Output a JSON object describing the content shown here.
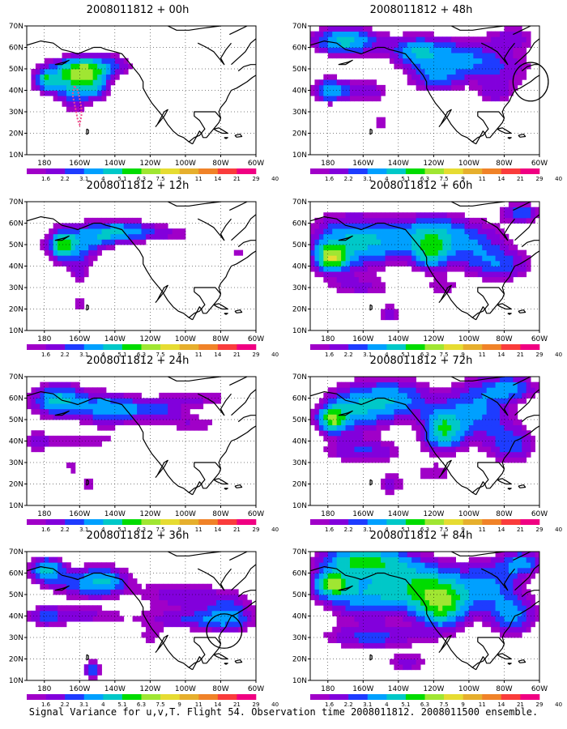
{
  "colors": {
    "levels": [
      "#a000c8",
      "#8200dc",
      "#1e3cff",
      "#00a0ff",
      "#00c8c8",
      "#00dc00",
      "#a0e632",
      "#e6dc32",
      "#e6af2d",
      "#f08228",
      "#fa3c3c",
      "#f00082"
    ],
    "coast": "#000000",
    "grid": "#000000",
    "circle": "#000000",
    "track": "#f0508c"
  },
  "axes": {
    "x_ticks": [
      "180",
      "160W",
      "140W",
      "120W",
      "100W",
      "80W",
      "60W"
    ],
    "x_values": [
      180,
      -160,
      -140,
      -120,
      -100,
      -80,
      -60
    ],
    "y_ticks": [
      "10N",
      "20N",
      "30N",
      "40N",
      "50N",
      "60N",
      "70N"
    ],
    "y_values": [
      10,
      20,
      30,
      40,
      50,
      60,
      70
    ]
  },
  "colorbar": {
    "labels": [
      "1.6",
      "2.2",
      "3.1",
      "4",
      "5.1",
      "6.3",
      "7.5",
      "9",
      "11",
      "14",
      "21",
      "29",
      "40"
    ]
  },
  "chart_data": [
    {
      "type": "heatmap",
      "title": "2008011812 + 00h",
      "xlim": [
        170,
        300
      ],
      "ylim": [
        10,
        70
      ],
      "blobs": [
        [
          192,
          45,
          20,
          9,
          4.2
        ],
        [
          200,
          50,
          14,
          6,
          3.6
        ],
        [
          205,
          48,
          10,
          8,
          2.6
        ],
        [
          197,
          35,
          8,
          8,
          2.1
        ],
        [
          220,
          52,
          12,
          6,
          2.6
        ],
        [
          210,
          40,
          8,
          6,
          2.0
        ],
        [
          181,
          45,
          5,
          4,
          3.1
        ],
        [
          244,
          33,
          2,
          2,
          1.6
        ]
      ],
      "threshold": 1.6,
      "circle": null,
      "track": true
    },
    {
      "type": "heatmap",
      "title": "2008011812 + 12h",
      "xlim": [
        170,
        300
      ],
      "ylim": [
        10,
        70
      ],
      "blobs": [
        [
          195,
          50,
          16,
          10,
          4.5
        ],
        [
          190,
          50,
          6,
          5,
          3.5
        ],
        [
          215,
          55,
          14,
          6,
          3.6
        ],
        [
          230,
          57,
          15,
          5,
          2.6
        ],
        [
          250,
          55,
          25,
          5,
          2.0
        ],
        [
          200,
          35,
          6,
          8,
          1.8
        ],
        [
          200,
          22,
          5,
          4,
          1.9
        ],
        [
          290,
          47,
          8,
          3,
          1.8
        ],
        [
          246,
          35,
          3,
          8,
          1.6
        ]
      ],
      "threshold": 1.6,
      "circle": null,
      "track": false
    },
    {
      "type": "heatmap",
      "title": "2008011812 + 24h",
      "xlim": [
        170,
        300
      ],
      "ylim": [
        10,
        70
      ],
      "blobs": [
        [
          188,
          59,
          16,
          8,
          5.5
        ],
        [
          215,
          55,
          15,
          8,
          4.2
        ],
        [
          240,
          55,
          18,
          6,
          3.6
        ],
        [
          270,
          60,
          20,
          5,
          2.2
        ],
        [
          265,
          48,
          20,
          5,
          2.0
        ],
        [
          200,
          40,
          30,
          5,
          2.0
        ],
        [
          195,
          28,
          6,
          6,
          1.8
        ],
        [
          205,
          20,
          6,
          5,
          1.9
        ],
        [
          175,
          40,
          8,
          6,
          1.8
        ]
      ],
      "threshold": 1.6,
      "circle": null,
      "track": false
    },
    {
      "type": "heatmap",
      "title": "2008011812 + 36h",
      "xlim": [
        170,
        300
      ],
      "ylim": [
        10,
        70
      ],
      "blobs": [
        [
          181,
          62,
          10,
          6,
          5.0
        ],
        [
          215,
          57,
          14,
          7,
          3.6
        ],
        [
          200,
          55,
          20,
          8,
          3.0
        ],
        [
          255,
          50,
          25,
          8,
          2.6
        ],
        [
          265,
          38,
          30,
          5,
          2.8
        ],
        [
          285,
          42,
          15,
          10,
          3.2
        ],
        [
          200,
          40,
          28,
          5,
          2.4
        ],
        [
          207,
          15,
          6,
          5,
          3.6
        ],
        [
          180,
          40,
          10,
          6,
          2.0
        ],
        [
          240,
          30,
          10,
          5,
          1.8
        ]
      ],
      "threshold": 1.6,
      "circle": [
        282,
        33,
        10,
        8
      ],
      "track": false
    },
    {
      "type": "heatmap",
      "title": "2008011812 + 48h",
      "xlim": [
        170,
        300
      ],
      "ylim": [
        10,
        70
      ],
      "blobs": [
        [
          190,
          63,
          20,
          7,
          5.5
        ],
        [
          230,
          58,
          16,
          8,
          4.5
        ],
        [
          255,
          55,
          20,
          10,
          3.6
        ],
        [
          180,
          40,
          10,
          6,
          4.5
        ],
        [
          200,
          40,
          14,
          6,
          3.0
        ],
        [
          240,
          45,
          15,
          7,
          3.0
        ],
        [
          280,
          50,
          20,
          10,
          2.5
        ],
        [
          285,
          65,
          15,
          6,
          2.4
        ],
        [
          275,
          38,
          12,
          5,
          2.1
        ],
        [
          210,
          25,
          4,
          10,
          1.8
        ]
      ],
      "threshold": 1.6,
      "circle": [
        295,
        44,
        10,
        9
      ],
      "track": false
    },
    {
      "type": "heatmap",
      "title": "2008011812 + 60h",
      "xlim": [
        170,
        300
      ],
      "ylim": [
        10,
        70
      ],
      "blobs": [
        [
          182,
          44,
          8,
          6,
          5.5
        ],
        [
          185,
          50,
          20,
          15,
          4.0
        ],
        [
          210,
          52,
          20,
          12,
          4.0
        ],
        [
          240,
          55,
          18,
          10,
          4.5
        ],
        [
          238,
          45,
          10,
          8,
          4.0
        ],
        [
          265,
          50,
          20,
          12,
          3.2
        ],
        [
          290,
          65,
          12,
          5,
          3.6
        ],
        [
          280,
          40,
          20,
          8,
          2.8
        ],
        [
          215,
          18,
          8,
          6,
          2.5
        ],
        [
          200,
          30,
          20,
          5,
          2.0
        ],
        [
          245,
          30,
          12,
          5,
          1.8
        ]
      ],
      "threshold": 1.6,
      "circle": null,
      "track": false
    },
    {
      "type": "heatmap",
      "title": "2008011812 + 72h",
      "xlim": [
        170,
        300
      ],
      "ylim": [
        10,
        70
      ],
      "blobs": [
        [
          182,
          50,
          8,
          6,
          5.5
        ],
        [
          195,
          55,
          20,
          12,
          4.5
        ],
        [
          220,
          60,
          20,
          10,
          4.0
        ],
        [
          245,
          45,
          12,
          10,
          5.5
        ],
        [
          265,
          55,
          20,
          15,
          4.0
        ],
        [
          285,
          65,
          15,
          6,
          3.6
        ],
        [
          285,
          38,
          15,
          10,
          3.2
        ],
        [
          200,
          35,
          25,
          6,
          3.0
        ],
        [
          215,
          20,
          10,
          6,
          2.4
        ],
        [
          240,
          25,
          15,
          5,
          2.0
        ]
      ],
      "threshold": 1.6,
      "circle": null,
      "track": false
    },
    {
      "type": "heatmap",
      "title": "2008011812 + 84h",
      "xlim": [
        170,
        300
      ],
      "ylim": [
        10,
        70
      ],
      "blobs": [
        [
          182,
          55,
          10,
          6,
          5.5
        ],
        [
          200,
          66,
          25,
          7,
          6.0
        ],
        [
          200,
          50,
          25,
          12,
          4.5
        ],
        [
          245,
          45,
          15,
          12,
          6.0
        ],
        [
          230,
          55,
          20,
          12,
          4.5
        ],
        [
          270,
          55,
          20,
          12,
          4.0
        ],
        [
          285,
          40,
          15,
          10,
          4.0
        ],
        [
          205,
          30,
          30,
          6,
          3.2
        ],
        [
          225,
          18,
          15,
          5,
          2.5
        ],
        [
          290,
          65,
          12,
          6,
          4.0
        ]
      ],
      "threshold": 1.6,
      "circle": null,
      "track": false
    }
  ],
  "caption": "Signal Variance for u,v,T. Flight 54. Observation time 2008011812. 2008011500 ensemble."
}
